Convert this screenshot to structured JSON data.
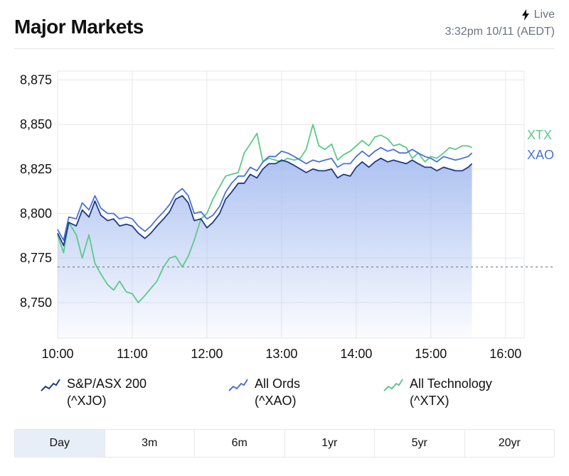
{
  "header": {
    "title": "Major Markets",
    "live_label": "Live",
    "timestamp": "3:32pm 10/11 (AEDT)"
  },
  "colors": {
    "xjo": "#1e3a8a",
    "xao": "#4a72d8",
    "xtx": "#5cc98a",
    "area_top": "#aabff0",
    "grid": "#e5e7eb"
  },
  "legend": [
    {
      "name": "S&P/ASX 200",
      "code": "(^XJO)",
      "icon": "line-chart-icon",
      "color": "#1e3a8a"
    },
    {
      "name": "All Ords",
      "code": "(^XAO)",
      "icon": "line-chart-icon",
      "color": "#4a72d8"
    },
    {
      "name": "All Technology",
      "code": "(^XTX)",
      "icon": "line-chart-icon",
      "color": "#5cc98a"
    }
  ],
  "tabs": [
    {
      "label": "Day",
      "active": true
    },
    {
      "label": "3m",
      "active": false
    },
    {
      "label": "6m",
      "active": false
    },
    {
      "label": "1yr",
      "active": false
    },
    {
      "label": "5yr",
      "active": false
    },
    {
      "label": "20yr",
      "active": false
    }
  ],
  "chart_data": {
    "type": "line",
    "title": "",
    "xlabel": "",
    "ylabel": "",
    "x_ticks": [
      "10:00",
      "11:00",
      "12:00",
      "13:00",
      "14:00",
      "15:00",
      "16:00"
    ],
    "y_ticks": [
      "8,875",
      "8,850",
      "8,825",
      "8,800",
      "8,775",
      "8,750"
    ],
    "y_tick_values": [
      8875,
      8850,
      8825,
      8800,
      8775,
      8750
    ],
    "xlim": [
      10.0,
      16.25
    ],
    "ylim": [
      8730,
      8880
    ],
    "reference_line": 8770,
    "end_labels": [
      "XTX",
      "XAO"
    ],
    "grid": true,
    "series": [
      {
        "key": "xjo",
        "name": "S&P/ASX 200",
        "area": true,
        "x": [
          10.0,
          10.08,
          10.15,
          10.25,
          10.33,
          10.42,
          10.5,
          10.58,
          10.67,
          10.75,
          10.83,
          10.92,
          11.0,
          11.08,
          11.17,
          11.25,
          11.33,
          11.42,
          11.5,
          11.58,
          11.67,
          11.75,
          11.83,
          11.92,
          12.0,
          12.08,
          12.17,
          12.25,
          12.33,
          12.42,
          12.5,
          12.58,
          12.67,
          12.75,
          12.83,
          12.92,
          13.0,
          13.08,
          13.17,
          13.25,
          13.33,
          13.42,
          13.5,
          13.58,
          13.67,
          13.75,
          13.83,
          13.92,
          14.0,
          14.08,
          14.17,
          14.25,
          14.33,
          14.42,
          14.5,
          14.58,
          14.67,
          14.75,
          14.83,
          14.92,
          15.0,
          15.08,
          15.17,
          15.25,
          15.33,
          15.42,
          15.5,
          15.55
        ],
        "y": [
          8789,
          8782,
          8795,
          8793,
          8802,
          8798,
          8807,
          8799,
          8796,
          8797,
          8793,
          8794,
          8793,
          8789,
          8786,
          8789,
          8793,
          8797,
          8801,
          8808,
          8810,
          8806,
          8796,
          8797,
          8792,
          8795,
          8800,
          8808,
          8812,
          8817,
          8817,
          8822,
          8820,
          8825,
          8828,
          8828,
          8830,
          8829,
          8827,
          8825,
          8823,
          8825,
          8824,
          8824,
          8825,
          8820,
          8822,
          8821,
          8826,
          8829,
          8826,
          8829,
          8831,
          8829,
          8830,
          8829,
          8828,
          8830,
          8828,
          8826,
          8826,
          8824,
          8826,
          8825,
          8824,
          8824,
          8826,
          8828
        ]
      },
      {
        "key": "xao",
        "name": "All Ords",
        "area": false,
        "x": [
          10.0,
          10.08,
          10.15,
          10.25,
          10.33,
          10.42,
          10.5,
          10.58,
          10.67,
          10.75,
          10.83,
          10.92,
          11.0,
          11.08,
          11.17,
          11.25,
          11.33,
          11.42,
          11.5,
          11.58,
          11.67,
          11.75,
          11.83,
          11.92,
          12.0,
          12.08,
          12.17,
          12.25,
          12.33,
          12.42,
          12.5,
          12.58,
          12.67,
          12.75,
          12.83,
          12.92,
          13.0,
          13.08,
          13.17,
          13.25,
          13.33,
          13.42,
          13.5,
          13.58,
          13.67,
          13.75,
          13.83,
          13.92,
          14.0,
          14.08,
          14.17,
          14.25,
          14.33,
          14.42,
          14.5,
          14.58,
          14.67,
          14.75,
          14.83,
          14.92,
          15.0,
          15.08,
          15.17,
          15.25,
          15.33,
          15.42,
          15.5,
          15.55
        ],
        "y": [
          8791,
          8785,
          8798,
          8797,
          8806,
          8802,
          8810,
          8803,
          8800,
          8800,
          8797,
          8798,
          8797,
          8793,
          8790,
          8793,
          8797,
          8801,
          8805,
          8811,
          8814,
          8810,
          8800,
          8801,
          8797,
          8799,
          8804,
          8812,
          8817,
          8821,
          8821,
          8826,
          8824,
          8829,
          8832,
          8832,
          8835,
          8834,
          8832,
          8830,
          8828,
          8830,
          8829,
          8830,
          8831,
          8826,
          8828,
          8828,
          8832,
          8835,
          8832,
          8835,
          8837,
          8835,
          8836,
          8834,
          8834,
          8836,
          8834,
          8832,
          8831,
          8829,
          8832,
          8831,
          8830,
          8831,
          8832,
          8834
        ]
      },
      {
        "key": "xtx",
        "name": "All Technology",
        "area": false,
        "x": [
          10.0,
          10.08,
          10.15,
          10.25,
          10.33,
          10.42,
          10.5,
          10.58,
          10.67,
          10.75,
          10.83,
          10.92,
          11.0,
          11.08,
          11.17,
          11.25,
          11.33,
          11.42,
          11.5,
          11.58,
          11.67,
          11.75,
          11.83,
          11.92,
          12.0,
          12.08,
          12.17,
          12.25,
          12.33,
          12.42,
          12.5,
          12.58,
          12.67,
          12.75,
          12.83,
          12.92,
          13.0,
          13.08,
          13.17,
          13.25,
          13.33,
          13.42,
          13.5,
          13.58,
          13.67,
          13.75,
          13.83,
          13.92,
          14.0,
          14.08,
          14.17,
          14.25,
          14.33,
          14.42,
          14.5,
          14.58,
          14.67,
          14.75,
          14.83,
          14.92,
          15.0,
          15.08,
          15.17,
          15.25,
          15.33,
          15.42,
          15.5,
          15.55
        ],
        "y": [
          8788,
          8778,
          8795,
          8788,
          8775,
          8788,
          8772,
          8766,
          8760,
          8757,
          8762,
          8756,
          8755,
          8750,
          8754,
          8758,
          8762,
          8770,
          8775,
          8776,
          8770,
          8776,
          8785,
          8797,
          8800,
          8808,
          8815,
          8821,
          8822,
          8823,
          8834,
          8839,
          8845,
          8829,
          8831,
          8830,
          8829,
          8831,
          8830,
          8831,
          8836,
          8850,
          8838,
          8836,
          8839,
          8830,
          8833,
          8835,
          8838,
          8841,
          8838,
          8843,
          8844,
          8842,
          8838,
          8839,
          8837,
          8831,
          8834,
          8829,
          8832,
          8831,
          8834,
          8837,
          8836,
          8838,
          8838,
          8837
        ]
      }
    ]
  }
}
